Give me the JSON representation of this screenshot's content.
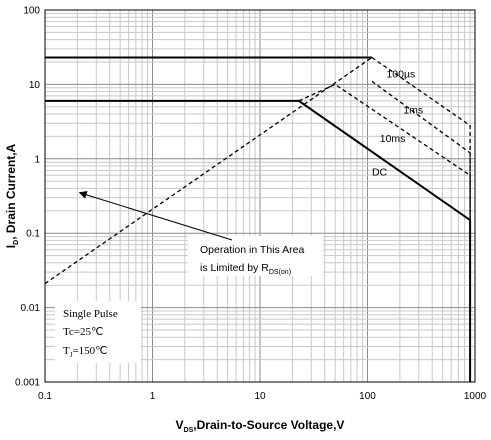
{
  "chart_data": {
    "type": "line",
    "xscale": "log",
    "yscale": "log",
    "xlim": [
      0.1,
      1000
    ],
    "ylim": [
      0.001,
      100
    ],
    "grid": true,
    "x_ticks": [
      "0.1",
      "1",
      "10",
      "100",
      "1000"
    ],
    "y_ticks": [
      "100",
      "10",
      "1",
      "0.1",
      "0.01",
      "0.001"
    ],
    "xlabel": {
      "main": "V",
      "sub": "DS",
      "rest": ",Drain-to-Source Voltage,V"
    },
    "ylabel": {
      "main": "I",
      "sub": "D",
      "rest": ", Drain Current,A"
    },
    "series": [
      {
        "name": "DC",
        "style": "solid",
        "x": [
          0.1,
          23,
          900,
          900
        ],
        "y": [
          6,
          6,
          0.15,
          0.001
        ]
      },
      {
        "name": "10ms",
        "style": "dashed",
        "x": [
          23,
          50,
          900,
          900
        ],
        "y": [
          6,
          10,
          0.6,
          0.001
        ]
      },
      {
        "name": "1ms",
        "style": "dashed",
        "x": [
          110,
          900,
          900
        ],
        "y": [
          11,
          1.2,
          0.001
        ]
      },
      {
        "name": "100µs",
        "style": "dashed",
        "x": [
          110,
          900,
          900
        ],
        "y": [
          23,
          2.8,
          0.001
        ]
      },
      {
        "name": "",
        "style": "solid",
        "x": [
          0.1,
          110
        ],
        "y": [
          23,
          23
        ]
      },
      {
        "name": "",
        "style": "dashed",
        "x": [
          0.1,
          110
        ],
        "y": [
          0.021,
          23
        ]
      }
    ],
    "labels": [
      {
        "text": "100µs",
        "x": 150,
        "y": 14
      },
      {
        "text": "1ms",
        "x": 215,
        "y": 4.6
      },
      {
        "text": "10ms",
        "x": 130,
        "y": 1.9
      },
      {
        "text": "DC",
        "x": 110,
        "y": 0.67
      }
    ],
    "annotation": {
      "line1": "Operation in This Area",
      "line2_main": "is Limited by R",
      "line2_sub": "DS(on)",
      "arrow_to": {
        "x": 0.21,
        "y": 0.35
      }
    },
    "note": {
      "line1": "Single Pulse",
      "line2": "Tc=25℃",
      "line3_main": "T",
      "line3_sub": "J",
      "line3_rest": "=150℃"
    }
  }
}
